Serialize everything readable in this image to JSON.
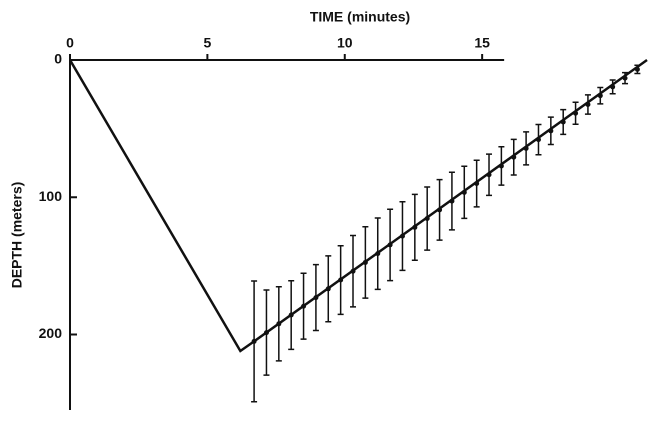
{
  "chart_data": {
    "type": "line",
    "x_label": "TIME (minutes)",
    "y_label": "DEPTH (meters)",
    "xlim": [
      0,
      21.4
    ],
    "xticks": [
      0,
      5,
      10,
      15
    ],
    "ylim": [
      0,
      255
    ],
    "yticks": [
      0,
      100,
      200
    ],
    "color": "#111111",
    "line": {
      "x": [
        0,
        6.2,
        6.7,
        21.0
      ],
      "values": [
        0,
        212,
        205,
        0
      ]
    },
    "points": {
      "x": [
        6.7,
        7.15,
        7.6,
        8.05,
        8.5,
        8.95,
        9.4,
        9.85,
        10.3,
        10.75,
        11.2,
        11.65,
        12.1,
        12.55,
        13.0,
        13.45,
        13.9,
        14.35,
        14.8,
        15.25,
        15.7,
        16.15,
        16.6,
        17.05,
        17.5,
        17.95,
        18.4,
        18.85,
        19.3,
        19.75,
        20.2,
        20.65
      ],
      "values": [
        205,
        198.6,
        192.2,
        185.8,
        179.4,
        173.1,
        166.7,
        160.3,
        153.9,
        147.5,
        141.1,
        134.7,
        128.3,
        121.9,
        115.5,
        109.2,
        102.8,
        96.4,
        90,
        83.6,
        77.2,
        70.8,
        64.4,
        58,
        51.6,
        45.2,
        38.8,
        32.4,
        26,
        19.6,
        13.2,
        6.8
      ],
      "errors": [
        44,
        31,
        27,
        25,
        24,
        24,
        24,
        25,
        26,
        26,
        26,
        26,
        25,
        24,
        23,
        22,
        21,
        19,
        17,
        15,
        14,
        13,
        12,
        11,
        10,
        9,
        8,
        7,
        6,
        5,
        4,
        3
      ]
    }
  }
}
